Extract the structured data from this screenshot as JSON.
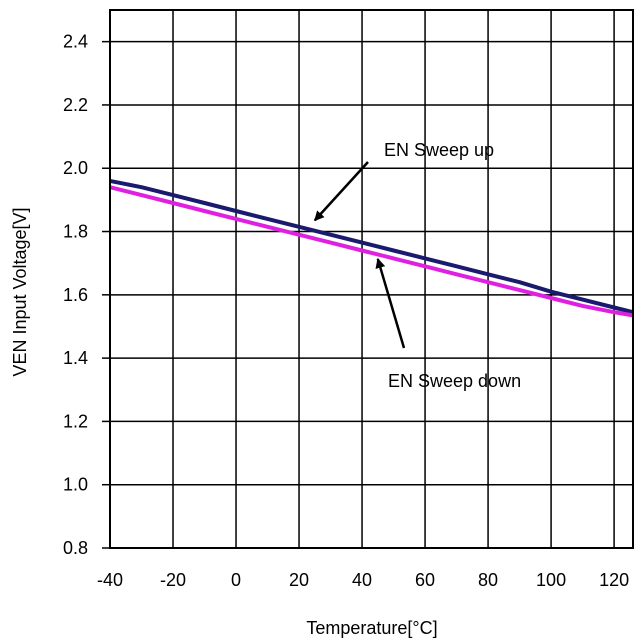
{
  "chart_data": {
    "type": "line",
    "title": "",
    "xlabel": "Temperature[°C]",
    "ylabel": "VEN Input Voltage[V]",
    "xlim": [
      -40,
      126
    ],
    "ylim": [
      0.8,
      2.5
    ],
    "xticks": [
      -40,
      -20,
      0,
      20,
      40,
      60,
      80,
      100,
      120
    ],
    "xtick_labels": [
      "-40",
      "-20",
      "0",
      "20",
      "40",
      "60",
      "80",
      "100",
      "120"
    ],
    "yticks": [
      0.8,
      1.0,
      1.2,
      1.4,
      1.6,
      1.8,
      2.0,
      2.2,
      2.4
    ],
    "ytick_labels": [
      "0.8",
      "1.0",
      "1.2",
      "1.4",
      "1.6",
      "1.8",
      "2.0",
      "2.2",
      "2.4"
    ],
    "grid": true,
    "legend": "none",
    "series": [
      {
        "name": "EN Sweep up",
        "color": "#1a1a6e",
        "x": [
          -40,
          -30,
          -20,
          -10,
          0,
          10,
          20,
          30,
          40,
          50,
          60,
          70,
          80,
          90,
          100,
          110,
          120,
          126
        ],
        "y": [
          1.96,
          1.94,
          1.915,
          1.89,
          1.865,
          1.84,
          1.815,
          1.79,
          1.765,
          1.74,
          1.715,
          1.69,
          1.665,
          1.64,
          1.61,
          1.585,
          1.56,
          1.545
        ]
      },
      {
        "name": "EN Sweep down",
        "color": "#e020e0",
        "x": [
          -40,
          -30,
          -20,
          -10,
          0,
          10,
          20,
          30,
          40,
          50,
          60,
          70,
          80,
          90,
          100,
          110,
          120,
          126
        ],
        "y": [
          1.94,
          1.915,
          1.89,
          1.865,
          1.84,
          1.815,
          1.79,
          1.765,
          1.74,
          1.715,
          1.69,
          1.665,
          1.64,
          1.615,
          1.59,
          1.565,
          1.545,
          1.535
        ]
      }
    ],
    "annotations": [
      {
        "text": "EN Sweep up",
        "arrow_to": [
          25,
          1.81
        ]
      },
      {
        "text": "EN Sweep down",
        "arrow_to": [
          45,
          1.745
        ]
      }
    ]
  }
}
